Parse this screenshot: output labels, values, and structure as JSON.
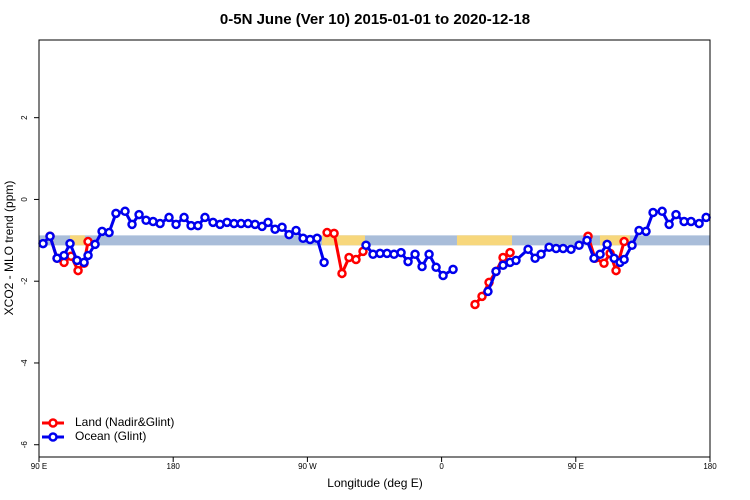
{
  "chart_data": {
    "type": "line",
    "title": "0-5N June (Ver 10)   2015-01-01 to 2020-12-18",
    "xlabel": "Longitude (deg E)",
    "ylabel": "XCO2 - MLO trend (ppm)",
    "xlim": [
      90,
      540
    ],
    "ylim": [
      -6.3,
      3.9
    ],
    "xticks": [
      {
        "value": 90,
        "label": "90 E"
      },
      {
        "value": 180,
        "label": "180"
      },
      {
        "value": 270,
        "label": "90 W"
      },
      {
        "value": 360,
        "label": "0"
      },
      {
        "value": 450,
        "label": "90 E"
      },
      {
        "value": 540,
        "label": "180"
      }
    ],
    "yticks": [
      2,
      0,
      -2,
      -4,
      -6
    ],
    "legend": "bottom-left",
    "band": {
      "value": -1,
      "color": "#a9bdd9",
      "land_color": "#f7d77c",
      "land_ranges": [
        [
          110.8,
          120.8
        ],
        [
          279.8,
          308.6
        ],
        [
          370.3,
          407.2
        ],
        [
          466.2,
          486.3
        ]
      ]
    },
    "series": [
      {
        "name": "Land (Nadir&Glint)",
        "color": "#ff0000",
        "x": [
          97.4,
          102.1,
          106.8,
          111.5,
          116.2,
          120.2,
          122.9,
          null,
          283.2,
          287.9,
          293.2,
          297.9,
          302.6,
          307.3,
          null,
          382.4,
          387.1,
          391.8,
          396.5,
          401.2,
          405.9,
          null,
          458.2,
          462.9,
          468.9,
          473.0,
          477.0,
          482.4
        ],
        "values": [
          -0.9,
          -1.44,
          -1.54,
          -1.39,
          -1.74,
          -1.56,
          -1.03,
          null,
          -0.81,
          -0.83,
          -1.81,
          -1.42,
          -1.47,
          -1.27,
          null,
          -2.57,
          -2.37,
          -2.03,
          -1.76,
          -1.42,
          -1.3,
          null,
          -0.9,
          -1.44,
          -1.56,
          -1.32,
          -1.74,
          -1.03
        ]
      },
      {
        "name": "Ocean (Glint)",
        "color": "#0000ee",
        "x": [
          92.7,
          97.4,
          102.1,
          106.8,
          110.8,
          115.5,
          120.2,
          122.9,
          127.6,
          132.3,
          137.0,
          141.6,
          147.7,
          152.4,
          157.1,
          161.8,
          166.5,
          171.2,
          177.2,
          181.9,
          187.3,
          192.0,
          196.6,
          201.3,
          206.7,
          211.4,
          216.1,
          220.8,
          225.5,
          230.2,
          234.9,
          239.6,
          243.6,
          248.3,
          253.0,
          257.7,
          262.4,
          267.1,
          271.8,
          276.5,
          281.2,
          null,
          309.3,
          314.0,
          318.7,
          323.4,
          328.1,
          332.8,
          337.5,
          342.2,
          346.9,
          351.6,
          356.3,
          361.0,
          367.7,
          null,
          391.1,
          396.5,
          401.2,
          405.9,
          409.9,
          418.0,
          422.7,
          426.7,
          432.1,
          436.8,
          441.5,
          446.8,
          452.2,
          457.5,
          462.2,
          466.3,
          471.0,
          475.7,
          479.7,
          482.4,
          487.7,
          492.4,
          497.1,
          501.8,
          507.9,
          512.6,
          517.2,
          522.6,
          527.3,
          532.7,
          537.4
        ],
        "values": [
          -1.08,
          -0.9,
          -1.44,
          -1.37,
          -1.08,
          -1.49,
          -1.54,
          -1.37,
          -1.1,
          -0.78,
          -0.81,
          -0.34,
          -0.29,
          -0.61,
          -0.37,
          -0.51,
          -0.54,
          -0.59,
          -0.44,
          -0.61,
          -0.44,
          -0.64,
          -0.64,
          -0.44,
          -0.56,
          -0.61,
          -0.56,
          -0.59,
          -0.59,
          -0.59,
          -0.61,
          -0.66,
          -0.56,
          -0.73,
          -0.68,
          -0.86,
          -0.76,
          -0.95,
          -0.98,
          -0.95,
          -1.54,
          null,
          -1.12,
          -1.34,
          -1.32,
          -1.32,
          -1.34,
          -1.3,
          -1.52,
          -1.34,
          -1.64,
          -1.34,
          -1.66,
          -1.86,
          -1.71,
          null,
          -2.25,
          -1.76,
          -1.61,
          -1.54,
          -1.49,
          -1.22,
          -1.44,
          -1.34,
          -1.17,
          -1.2,
          -1.2,
          -1.22,
          -1.12,
          -1.0,
          -1.44,
          -1.34,
          -1.1,
          -1.44,
          -1.54,
          -1.47,
          -1.12,
          -0.76,
          -0.78,
          -0.32,
          -0.29,
          -0.61,
          -0.37,
          -0.54,
          -0.54,
          -0.59,
          -0.44
        ]
      }
    ]
  }
}
